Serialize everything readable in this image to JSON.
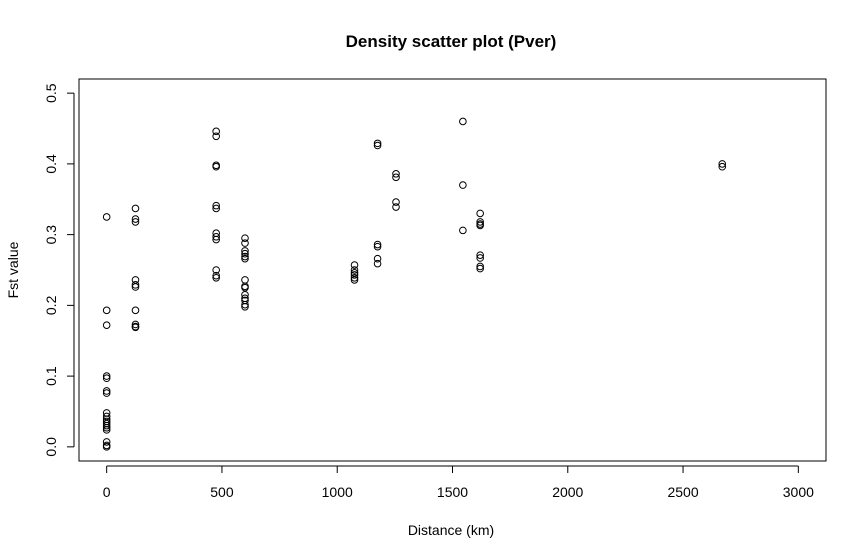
{
  "chart_data": {
    "type": "scatter",
    "title": "Density scatter plot (Pver)",
    "xlabel": "Distance (km)",
    "ylabel": "Fst value",
    "xlim": [
      -120,
      3120
    ],
    "ylim": [
      -0.02,
      0.52
    ],
    "xticks": [
      0,
      500,
      1000,
      1500,
      2000,
      2500,
      3000
    ],
    "yticks": [
      0.0,
      0.1,
      0.2,
      0.3,
      0.4,
      0.5
    ],
    "xtick_labels": [
      "0",
      "500",
      "1000",
      "1500",
      "2000",
      "2500",
      "3000"
    ],
    "ytick_labels": [
      "0.0",
      "0.1",
      "0.2",
      "0.3",
      "0.4",
      "0.5"
    ],
    "grid": false,
    "marker": "open-circle",
    "x": [
      0,
      0,
      0,
      0,
      0,
      0,
      0,
      0,
      0,
      0,
      0,
      0,
      0,
      0,
      0,
      0,
      0,
      0,
      125,
      125,
      125,
      125,
      125,
      125,
      125,
      125,
      125,
      125,
      475,
      475,
      475,
      475,
      475,
      475,
      475,
      475,
      475,
      475,
      475,
      475,
      600,
      600,
      600,
      600,
      600,
      600,
      600,
      600,
      600,
      600,
      600,
      600,
      600,
      600,
      1075,
      1075,
      1075,
      1075,
      1075,
      1075,
      1175,
      1175,
      1175,
      1175,
      1175,
      1175,
      1255,
      1255,
      1255,
      1255,
      1545,
      1545,
      1545,
      1620,
      1620,
      1620,
      1620,
      1620,
      1620,
      1620,
      1620,
      2670,
      2670
    ],
    "y": [
      0.325,
      0.193,
      0.172,
      0.1,
      0.097,
      0.079,
      0.076,
      0.048,
      0.043,
      0.039,
      0.036,
      0.033,
      0.03,
      0.027,
      0.024,
      0.007,
      0.002,
      0.0,
      0.337,
      0.322,
      0.318,
      0.236,
      0.229,
      0.226,
      0.193,
      0.173,
      0.17,
      0.169,
      0.446,
      0.439,
      0.398,
      0.396,
      0.341,
      0.337,
      0.302,
      0.297,
      0.293,
      0.25,
      0.242,
      0.239,
      0.295,
      0.288,
      0.277,
      0.273,
      0.269,
      0.266,
      0.236,
      0.227,
      0.225,
      0.215,
      0.21,
      0.207,
      0.201,
      0.198,
      0.257,
      0.25,
      0.246,
      0.243,
      0.239,
      0.236,
      0.429,
      0.426,
      0.286,
      0.283,
      0.266,
      0.259,
      0.386,
      0.381,
      0.346,
      0.339,
      0.46,
      0.37,
      0.306,
      0.33,
      0.318,
      0.315,
      0.313,
      0.271,
      0.267,
      0.255,
      0.252,
      0.4,
      0.396
    ]
  }
}
